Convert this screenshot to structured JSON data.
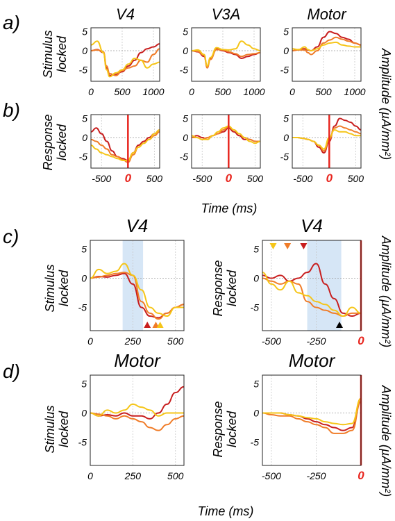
{
  "panel_labels": [
    "a)",
    "b)",
    "c)",
    "d)"
  ],
  "row_labels": {
    "a": [
      "Stimulus",
      "locked"
    ],
    "b": [
      "Response",
      "locked"
    ],
    "c_left": [
      "Stimulus",
      "locked"
    ],
    "c_right": [
      "Response",
      "locked"
    ],
    "d_left": [
      "Stimulus",
      "locked"
    ],
    "d_right": [
      "Response",
      "locked"
    ]
  },
  "right_labels": {
    "ab": "Amplitude (µA/mm²)",
    "c": "Amplitude (µA/mm²)",
    "d": "Amplitude (µA/mm²)"
  },
  "time_label": "Time (ms)",
  "colors": {
    "red": "#c81e1e",
    "orange": "#f07c28",
    "yellow": "#f5c518",
    "event": "#e8261f",
    "shade": "#d6e6f6"
  },
  "chart_data": [
    {
      "id": "a1",
      "type": "line",
      "title": "V4",
      "x": [
        0,
        100,
        200,
        250,
        300,
        400,
        500,
        600,
        700,
        800,
        900,
        1000,
        1100
      ],
      "xticks": [
        0,
        500,
        1000
      ],
      "yticks": [
        -5,
        0,
        5
      ],
      "xlim": [
        0,
        1100
      ],
      "ylim": [
        -8,
        6
      ],
      "series": [
        {
          "color": "red",
          "values": [
            0,
            0.3,
            -0.5,
            -4.5,
            -6.5,
            -6.2,
            -5.5,
            -4,
            -2.5,
            -0.5,
            0.5,
            1,
            1.8
          ]
        },
        {
          "color": "orange",
          "values": [
            0,
            0.2,
            -0.3,
            -4,
            -6,
            -6.5,
            -5.2,
            -4.5,
            -4,
            -2.5,
            -3,
            -1,
            0.5
          ]
        },
        {
          "color": "yellow",
          "values": [
            1.5,
            2.5,
            -0.5,
            -5,
            -6.8,
            -5.8,
            -5,
            -3.5,
            -2,
            -2.5,
            -4.5,
            -3.5,
            -3
          ]
        }
      ]
    },
    {
      "id": "a2",
      "type": "line",
      "title": "V3A",
      "x": [
        0,
        100,
        200,
        250,
        300,
        400,
        500,
        600,
        700,
        800,
        900,
        1000,
        1100
      ],
      "xticks": [
        0,
        500,
        1000
      ],
      "yticks": [
        -5,
        0,
        5
      ],
      "xlim": [
        0,
        1100
      ],
      "ylim": [
        -8,
        6
      ],
      "series": [
        {
          "color": "red",
          "values": [
            0,
            -0.3,
            -1.5,
            -4,
            -2,
            0.5,
            0,
            -0.5,
            -1,
            -2,
            -1.5,
            -1,
            -0.5
          ]
        },
        {
          "color": "orange",
          "values": [
            0,
            -0.2,
            -1.2,
            -4.5,
            -2.3,
            0.3,
            0.2,
            -0.3,
            -0.8,
            -1.5,
            -1,
            -0.8,
            -0.5
          ]
        },
        {
          "color": "yellow",
          "values": [
            0,
            0.2,
            -1,
            -4,
            -1.8,
            0.8,
            0.3,
            0.2,
            0.5,
            2.5,
            1.5,
            0.5,
            0
          ]
        }
      ]
    },
    {
      "id": "a3",
      "type": "line",
      "title": "Motor",
      "x": [
        0,
        100,
        200,
        250,
        300,
        400,
        500,
        600,
        700,
        800,
        900,
        1000,
        1100
      ],
      "xticks": [
        0,
        500,
        1000
      ],
      "yticks": [
        -5,
        0,
        5
      ],
      "xlim": [
        0,
        1100
      ],
      "ylim": [
        -8,
        6
      ],
      "series": [
        {
          "color": "red",
          "values": [
            0,
            0.3,
            0.5,
            0.2,
            0,
            1,
            3.5,
            5,
            4.5,
            3.5,
            3,
            2,
            1.5
          ]
        },
        {
          "color": "orange",
          "values": [
            0,
            0.2,
            0.2,
            -0.5,
            -1,
            0,
            2,
            2.8,
            3.5,
            3,
            2.5,
            2,
            1.5
          ]
        },
        {
          "color": "yellow",
          "values": [
            0.5,
            0.3,
            1,
            0.3,
            0,
            0.5,
            1.5,
            2,
            2.2,
            1.5,
            1.2,
            1,
            1
          ]
        }
      ]
    },
    {
      "id": "b1",
      "type": "line",
      "x": [
        -700,
        -600,
        -500,
        -400,
        -300,
        -200,
        -100,
        0,
        100,
        200,
        300,
        400,
        500,
        600
      ],
      "xticks": [
        -500,
        0,
        500
      ],
      "yticks": [
        -5,
        0,
        5
      ],
      "xlim": [
        -700,
        600
      ],
      "ylim": [
        -8,
        6
      ],
      "zero_label": "0",
      "series": [
        {
          "color": "red",
          "values": [
            1.5,
            2.5,
            1,
            -1,
            -3.5,
            -5,
            -5.5,
            -6,
            -4,
            -2,
            -1,
            0,
            1,
            2
          ]
        },
        {
          "color": "orange",
          "values": [
            -0.5,
            -1,
            -2,
            -3,
            -4.5,
            -5,
            -5.8,
            -6.5,
            -4.5,
            -2.5,
            -1.5,
            -0.5,
            0.5,
            1.5
          ]
        },
        {
          "color": "yellow",
          "values": [
            -2,
            -3,
            -4,
            -4.5,
            -5,
            -5.5,
            -6,
            -6,
            -4,
            -2.5,
            -1.5,
            -0.5,
            1,
            2
          ]
        }
      ]
    },
    {
      "id": "b2",
      "type": "line",
      "x": [
        -700,
        -600,
        -500,
        -400,
        -300,
        -200,
        -100,
        0,
        100,
        200,
        300,
        400,
        500,
        600
      ],
      "xticks": [
        -500,
        0,
        500
      ],
      "yticks": [
        -5,
        0,
        5
      ],
      "xlim": [
        -700,
        600
      ],
      "ylim": [
        -8,
        6
      ],
      "zero_label": "0",
      "series": [
        {
          "color": "red",
          "values": [
            0,
            0.5,
            0,
            -0.5,
            0.5,
            1,
            1.5,
            2.5,
            1.5,
            0.5,
            -0.5,
            -0.5,
            -1,
            -1
          ]
        },
        {
          "color": "orange",
          "values": [
            0,
            0,
            -0.5,
            0,
            0.5,
            1,
            2,
            2.8,
            2,
            1,
            0,
            -0.5,
            -1,
            -1
          ]
        },
        {
          "color": "yellow",
          "values": [
            0.5,
            0,
            -0.5,
            -0.5,
            0.5,
            1.5,
            2.5,
            3,
            2,
            1,
            0,
            -1,
            -1.5,
            -1
          ]
        }
      ]
    },
    {
      "id": "b3",
      "type": "line",
      "x": [
        -700,
        -600,
        -500,
        -400,
        -300,
        -200,
        -100,
        0,
        100,
        200,
        300,
        400,
        500,
        600
      ],
      "xticks": [
        -500,
        0,
        500
      ],
      "yticks": [
        -5,
        0,
        5
      ],
      "xlim": [
        -700,
        600
      ],
      "ylim": [
        -8,
        6
      ],
      "zero_label": "0",
      "series": [
        {
          "color": "red",
          "values": [
            0,
            0,
            -0.2,
            -0.5,
            -1,
            -2.5,
            -4,
            -1,
            3,
            5,
            4.5,
            4,
            3,
            2
          ]
        },
        {
          "color": "orange",
          "values": [
            0,
            0,
            -0.2,
            -0.5,
            -1,
            -2,
            -3.5,
            -0.5,
            2.5,
            3,
            2.5,
            2,
            1.5,
            1
          ]
        },
        {
          "color": "yellow",
          "values": [
            0,
            0,
            -0.2,
            -0.5,
            -1,
            -2,
            -3,
            0,
            2,
            1.5,
            1.5,
            1,
            0.5,
            0.5
          ]
        }
      ]
    },
    {
      "id": "c1",
      "type": "line",
      "title": "V4",
      "x": [
        0,
        50,
        100,
        150,
        200,
        250,
        300,
        350,
        400,
        450,
        500,
        550
      ],
      "xticks": [
        0,
        250,
        500
      ],
      "yticks": [
        -5,
        0,
        5
      ],
      "xlim": [
        0,
        550
      ],
      "ylim": [
        -9,
        6.5
      ],
      "shade": [
        190,
        310
      ],
      "markers": [
        {
          "x": 335,
          "color": "red",
          "dir": "up"
        },
        {
          "x": 385,
          "color": "orange",
          "dir": "up"
        },
        {
          "x": 410,
          "color": "yellow",
          "dir": "up"
        }
      ],
      "series": [
        {
          "color": "red",
          "values": [
            0,
            0.3,
            0.2,
            0.5,
            0.8,
            -1,
            -5,
            -6.5,
            -6.8,
            -6,
            -5,
            -4.5
          ]
        },
        {
          "color": "orange",
          "values": [
            0,
            0.2,
            0.5,
            0.8,
            1,
            0.5,
            -4,
            -6,
            -7,
            -6,
            -5,
            -4.5
          ]
        },
        {
          "color": "yellow",
          "values": [
            0,
            1.5,
            0.8,
            1.2,
            2.5,
            0.5,
            -2,
            -5,
            -6,
            -6.5,
            -5,
            -5
          ]
        }
      ]
    },
    {
      "id": "c2",
      "type": "line",
      "title": "V4",
      "x": [
        -550,
        -500,
        -450,
        -400,
        -350,
        -300,
        -250,
        -200,
        -150,
        -100,
        -50,
        0
      ],
      "xticks": [
        -500,
        -250,
        0
      ],
      "yticks": [
        -5,
        0,
        5
      ],
      "xlim": [
        -550,
        0
      ],
      "ylim": [
        -9,
        6.5
      ],
      "shade": [
        -300,
        -110
      ],
      "zero_label": "0",
      "markers": [
        {
          "x": -490,
          "color": "yellow",
          "dir": "down"
        },
        {
          "x": -410,
          "color": "orange",
          "dir": "down"
        },
        {
          "x": -320,
          "color": "red",
          "dir": "down"
        },
        {
          "x": -120,
          "color": "black",
          "dir": "up"
        }
      ],
      "series": [
        {
          "color": "red",
          "values": [
            0.5,
            0,
            0.5,
            -0.5,
            0,
            1,
            2.5,
            -1,
            -3.5,
            -6,
            -6.5,
            -6
          ]
        },
        {
          "color": "orange",
          "values": [
            0,
            -0.5,
            -1,
            -0.5,
            -1,
            -4,
            -5,
            -5.5,
            -6,
            -6.5,
            -6,
            -6
          ]
        },
        {
          "color": "yellow",
          "values": [
            1,
            -1,
            -2,
            -0.5,
            -2.5,
            -3,
            -4,
            -4.5,
            -5.5,
            -6.5,
            -5,
            -6
          ]
        }
      ]
    },
    {
      "id": "d1",
      "type": "line",
      "title": "Motor",
      "x": [
        0,
        50,
        100,
        150,
        200,
        250,
        300,
        350,
        400,
        450,
        500,
        550
      ],
      "xticks": [
        0,
        250,
        500
      ],
      "yticks": [
        -5,
        0,
        5
      ],
      "xlim": [
        0,
        550
      ],
      "ylim": [
        -9,
        6.5
      ],
      "series": [
        {
          "color": "red",
          "values": [
            0,
            -0.5,
            -0.3,
            -0.5,
            0,
            -0.5,
            -0.5,
            -1,
            0,
            1.5,
            3.5,
            4.5
          ]
        },
        {
          "color": "orange",
          "values": [
            0,
            -0.2,
            -0.5,
            -1,
            -0.5,
            -1,
            -1.5,
            -2.5,
            -3,
            -2,
            -1,
            -0.5
          ]
        },
        {
          "color": "yellow",
          "values": [
            0,
            -0.5,
            0.5,
            0,
            0.5,
            1.5,
            1,
            0.5,
            -0.5,
            0,
            0,
            0
          ]
        }
      ]
    },
    {
      "id": "d2",
      "type": "line",
      "title": "Motor",
      "x": [
        -550,
        -500,
        -450,
        -400,
        -350,
        -300,
        -250,
        -200,
        -150,
        -100,
        -50,
        0
      ],
      "xticks": [
        -500,
        -250,
        0
      ],
      "yticks": [
        -5,
        0,
        5
      ],
      "xlim": [
        -550,
        0
      ],
      "ylim": [
        -9,
        6.5
      ],
      "zero_label": "0",
      "series": [
        {
          "color": "red",
          "values": [
            0,
            0,
            0,
            -0.3,
            -0.5,
            -1,
            -1.5,
            -2,
            -2.5,
            -3,
            -2.5,
            2.5
          ]
        },
        {
          "color": "orange",
          "values": [
            0,
            -0.3,
            -0.5,
            -0.5,
            -1,
            -1.5,
            -2,
            -2.5,
            -3.5,
            -3.5,
            -3,
            2
          ]
        },
        {
          "color": "yellow",
          "values": [
            0,
            0,
            0,
            -0.3,
            -0.5,
            -0.8,
            -1,
            -1.5,
            -1.8,
            -2,
            -1.8,
            2.5
          ]
        }
      ]
    }
  ]
}
